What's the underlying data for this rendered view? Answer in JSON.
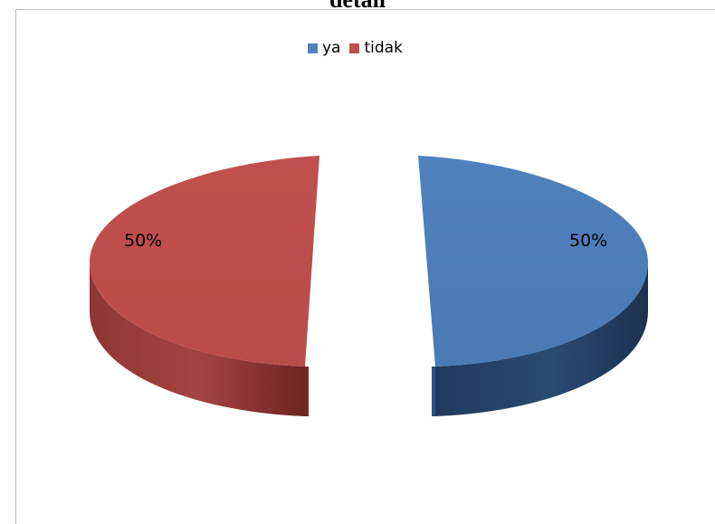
{
  "page": {
    "title_fragment": "detail"
  },
  "chart_data": {
    "type": "pie",
    "style": "3d-exploded",
    "categories": [
      "ya",
      "tidak"
    ],
    "values": [
      50,
      50
    ],
    "data_labels": [
      "50%",
      "50%"
    ],
    "colors": [
      "#4f81bd",
      "#c0504d"
    ],
    "legend": {
      "position": "top",
      "entries": [
        "ya",
        "tidak"
      ]
    }
  }
}
